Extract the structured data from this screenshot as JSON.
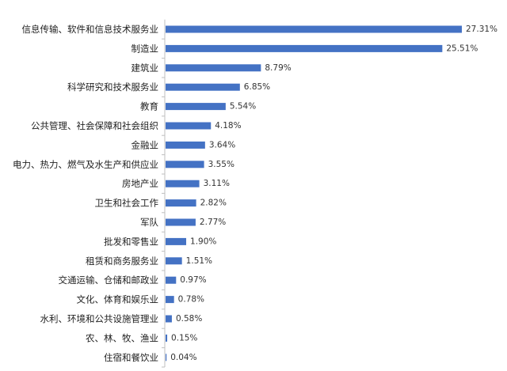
{
  "chart_data": {
    "type": "bar",
    "orientation": "horizontal",
    "categories": [
      "信息传输、软件和信息技术服务业",
      "制造业",
      "建筑业",
      "科学研究和技术服务业",
      "教育",
      "公共管理、社会保障和社会组织",
      "金融业",
      "电力、热力、燃气及水生产和供应业",
      "房地产业",
      "卫生和社会工作",
      "军队",
      "批发和零售业",
      "租赁和商务服务业",
      "交通运输、仓储和邮政业",
      "文化、体育和娱乐业",
      "水利、环境和公共设施管理业",
      "农、林、牧、渔业",
      "住宿和餐饮业"
    ],
    "values": [
      27.31,
      25.51,
      8.79,
      6.85,
      5.54,
      4.18,
      3.64,
      3.55,
      3.11,
      2.82,
      2.77,
      1.9,
      1.51,
      0.97,
      0.78,
      0.58,
      0.15,
      0.04
    ],
    "value_labels": [
      "27.31%",
      "25.51%",
      "8.79%",
      "6.85%",
      "5.54%",
      "4.18%",
      "3.64%",
      "3.55%",
      "3.11%",
      "2.82%",
      "2.77%",
      "1.90%",
      "1.51%",
      "0.97%",
      "0.78%",
      "0.58%",
      "0.15%",
      "0.04%"
    ],
    "title": "",
    "xlabel": "",
    "ylabel": "",
    "xlim": [
      0,
      27.31
    ],
    "grid": false,
    "legend": "none",
    "bar_color": "#4472c4",
    "axis_color": "#bfbfbf"
  }
}
